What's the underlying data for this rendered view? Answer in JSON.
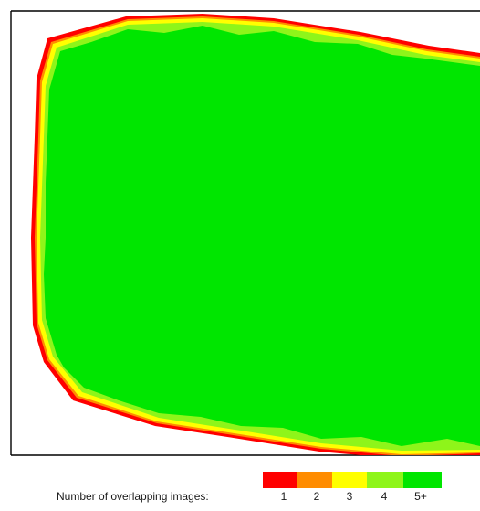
{
  "legend": {
    "title": "Number of overlapping images:",
    "entries": [
      {
        "label": "1",
        "color": "#ff0000"
      },
      {
        "label": "2",
        "color": "#ff8c00"
      },
      {
        "label": "3",
        "color": "#ffff00"
      },
      {
        "label": "4",
        "color": "#8ef51a"
      },
      {
        "label": "5+",
        "color": "#00e600"
      }
    ]
  },
  "map": {
    "coverage_color": "#00e600",
    "frame_color": "#000000"
  }
}
